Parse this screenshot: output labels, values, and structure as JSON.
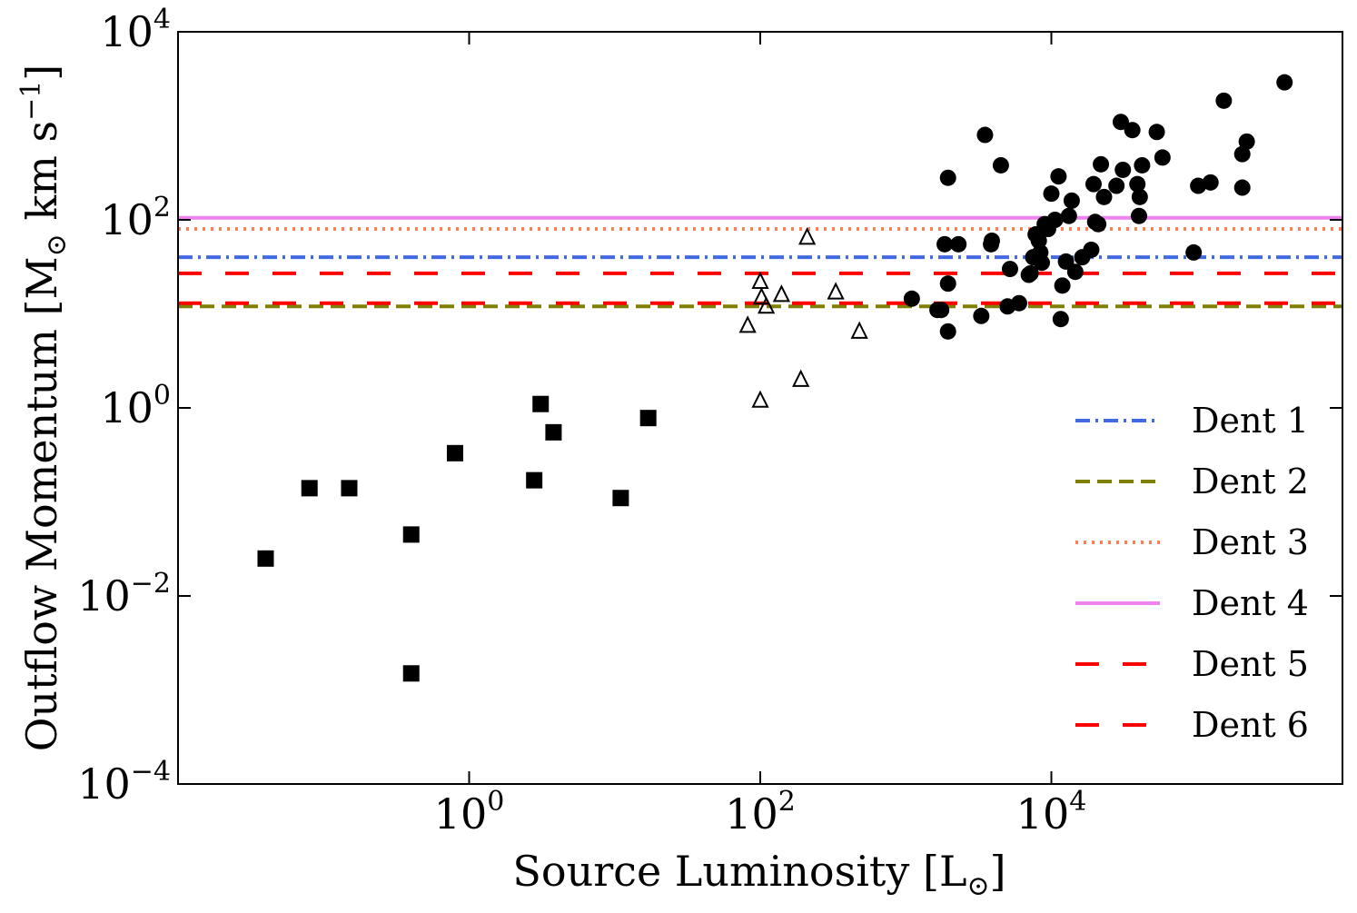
{
  "chart_data": {
    "type": "scatter",
    "xscale": "log",
    "yscale": "log",
    "xlabel": "Source Luminosity [L",
    "xlabel_suffix": "]",
    "ylabel": "Outflow Momentum [M",
    "ylabel_mid": " km s",
    "ylabel_sup": "−1",
    "ylabel_suffix": "]",
    "xlim": [
      0.01,
      1000000
    ],
    "ylim": [
      0.0001,
      10000
    ],
    "x_ticks": [
      {
        "value": 1,
        "base": "10",
        "exp": "0"
      },
      {
        "value": 100,
        "base": "10",
        "exp": "2"
      },
      {
        "value": 10000,
        "base": "10",
        "exp": "4"
      }
    ],
    "y_ticks": [
      {
        "value": 0.0001,
        "base": "10",
        "exp": "−4"
      },
      {
        "value": 0.01,
        "base": "10",
        "exp": "−2"
      },
      {
        "value": 1,
        "base": "10",
        "exp": "0"
      },
      {
        "value": 100,
        "base": "10",
        "exp": "2"
      },
      {
        "value": 10000,
        "base": "10",
        "exp": "4"
      }
    ],
    "grid": false,
    "legend_position": "lower-right",
    "reference_lines": [
      {
        "name": "Dent 1",
        "y": 40,
        "color": "#4169e1",
        "style": "dashdot"
      },
      {
        "name": "Dent 2",
        "y": 12,
        "color": "#808000",
        "style": "dashed"
      },
      {
        "name": "Dent 3",
        "y": 80,
        "color": "#ff7f50",
        "style": "dotted"
      },
      {
        "name": "Dent 4",
        "y": 105,
        "color": "#ee82ee",
        "style": "solid"
      },
      {
        "name": "Dent 5",
        "y": 27,
        "color": "#ff0000",
        "style": "longdash"
      },
      {
        "name": "Dent 6",
        "y": 13,
        "color": "#ff0000",
        "style": "longdash"
      }
    ],
    "series": [
      {
        "marker": "square",
        "points": [
          [
            0.04,
            0.025
          ],
          [
            0.08,
            0.14
          ],
          [
            0.15,
            0.14
          ],
          [
            0.4,
            0.045
          ],
          [
            0.4,
            0.0015
          ],
          [
            0.8,
            0.33
          ],
          [
            2.8,
            0.17
          ],
          [
            3.1,
            1.1
          ],
          [
            3.8,
            0.55
          ],
          [
            11,
            0.11
          ],
          [
            17,
            0.78
          ]
        ]
      },
      {
        "marker": "open-triangle",
        "points": [
          [
            82,
            7.5
          ],
          [
            100,
            22
          ],
          [
            100,
            1.2
          ],
          [
            102,
            15
          ],
          [
            110,
            12
          ],
          [
            140,
            16
          ],
          [
            190,
            2
          ],
          [
            210,
            65
          ],
          [
            330,
            17
          ],
          [
            480,
            6.5
          ]
        ]
      },
      {
        "marker": "circle",
        "points": [
          [
            1100,
            14.5
          ],
          [
            1650,
            11
          ],
          [
            1750,
            11
          ],
          [
            1850,
            55
          ],
          [
            1950,
            280
          ],
          [
            1950,
            21
          ],
          [
            1950,
            6.5
          ],
          [
            2300,
            55
          ],
          [
            3300,
            9.5
          ],
          [
            3500,
            800
          ],
          [
            3850,
            55
          ],
          [
            3900,
            60
          ],
          [
            4500,
            380
          ],
          [
            5000,
            12
          ],
          [
            5200,
            30
          ],
          [
            6000,
            13
          ],
          [
            7000,
            26
          ],
          [
            7200,
            27
          ],
          [
            7500,
            40
          ],
          [
            7800,
            70
          ],
          [
            8200,
            60
          ],
          [
            8400,
            45
          ],
          [
            8600,
            35
          ],
          [
            9000,
            90
          ],
          [
            9500,
            80
          ],
          [
            10000,
            190
          ],
          [
            10600,
            100
          ],
          [
            11200,
            290
          ],
          [
            11600,
            8.8
          ],
          [
            11900,
            20
          ],
          [
            12600,
            36
          ],
          [
            13200,
            110
          ],
          [
            13800,
            160
          ],
          [
            14600,
            28
          ],
          [
            16300,
            40
          ],
          [
            18800,
            48
          ],
          [
            19500,
            240
          ],
          [
            20000,
            95
          ],
          [
            21000,
            90
          ],
          [
            21900,
            390
          ],
          [
            23000,
            175
          ],
          [
            28000,
            230
          ],
          [
            30000,
            1100
          ],
          [
            31000,
            340
          ],
          [
            36000,
            900
          ],
          [
            39000,
            240
          ],
          [
            40000,
            110
          ],
          [
            40500,
            175
          ],
          [
            42000,
            380
          ],
          [
            53000,
            860
          ],
          [
            58000,
            460
          ],
          [
            95000,
            45
          ],
          [
            102000,
            230
          ],
          [
            124000,
            250
          ],
          [
            153000,
            1850
          ],
          [
            205000,
            220
          ],
          [
            205000,
            500
          ],
          [
            220000,
            680
          ],
          [
            400000,
            2900
          ]
        ]
      }
    ]
  }
}
